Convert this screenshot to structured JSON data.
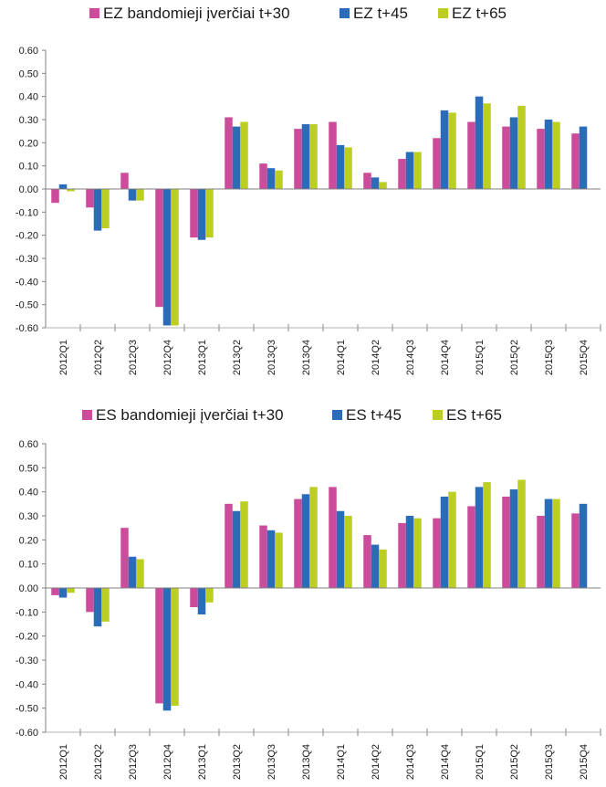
{
  "colors": {
    "s1": "#cc4b9a",
    "s2": "#2a6cb8",
    "s3": "#bcce24",
    "axis": "#808080",
    "grid": "#b0b0b0"
  },
  "chart_data": [
    {
      "type": "bar",
      "legend": [
        "EZ bandomieji įverčiai t+30",
        "EZ t+45",
        "EZ t+65"
      ],
      "categories": [
        "2012Q1",
        "2012Q2",
        "2012Q3",
        "2012Q4",
        "2013Q1",
        "2013Q2",
        "2013Q3",
        "2013Q4",
        "2014Q1",
        "2014Q2",
        "2014Q3",
        "2014Q4",
        "2015Q1",
        "2015Q2",
        "2015Q3",
        "2015Q4"
      ],
      "yticks": [
        "0.60",
        "0.50",
        "0.40",
        "0.30",
        "0.20",
        "0.10",
        "0.00",
        "-0.10",
        "-0.20",
        "-0.30",
        "-0.40",
        "-0.50",
        "-0.60"
      ],
      "ylim": [
        -0.6,
        0.6
      ],
      "series": [
        {
          "name": "EZ bandomieji įverčiai t+30",
          "values": [
            -0.06,
            -0.08,
            0.07,
            -0.51,
            -0.21,
            0.31,
            0.11,
            0.26,
            0.29,
            0.07,
            0.13,
            0.22,
            0.29,
            0.27,
            0.26,
            0.24
          ]
        },
        {
          "name": "EZ t+45",
          "values": [
            0.02,
            -0.18,
            -0.05,
            -0.59,
            -0.22,
            0.27,
            0.09,
            0.28,
            0.19,
            0.05,
            0.16,
            0.34,
            0.4,
            0.31,
            0.3,
            0.27
          ]
        },
        {
          "name": "EZ t+65",
          "values": [
            -0.01,
            -0.17,
            -0.05,
            -0.59,
            -0.21,
            0.29,
            0.08,
            0.28,
            0.18,
            0.03,
            0.16,
            0.33,
            0.37,
            0.36,
            0.29,
            null
          ]
        }
      ]
    },
    {
      "type": "bar",
      "legend": [
        "ES bandomieji įverčiai t+30",
        "ES t+45",
        "ES t+65"
      ],
      "categories": [
        "2012Q1",
        "2012Q2",
        "2012Q3",
        "2012Q4",
        "2013Q1",
        "2013Q2",
        "2013Q3",
        "2013Q4",
        "2014Q1",
        "2014Q2",
        "2014Q3",
        "2014Q4",
        "2015Q1",
        "2015Q2",
        "2015Q3",
        "2015Q4"
      ],
      "yticks": [
        "0.60",
        "0.50",
        "0.40",
        "0.30",
        "0.20",
        "0.10",
        "0.00",
        "-0.10",
        "-0.20",
        "-0.30",
        "-0.40",
        "-0.50",
        "-0.60"
      ],
      "ylim": [
        -0.6,
        0.6
      ],
      "series": [
        {
          "name": "ES bandomieji įverčiai t+30",
          "values": [
            -0.03,
            -0.1,
            0.25,
            -0.48,
            -0.08,
            0.35,
            0.26,
            0.37,
            0.42,
            0.22,
            0.27,
            0.29,
            0.34,
            0.38,
            0.3,
            0.31
          ]
        },
        {
          "name": "ES t+45",
          "values": [
            -0.04,
            -0.16,
            0.13,
            -0.51,
            -0.11,
            0.32,
            0.24,
            0.39,
            0.32,
            0.18,
            0.3,
            0.38,
            0.42,
            0.41,
            0.37,
            0.35
          ]
        },
        {
          "name": "ES t+65",
          "values": [
            -0.02,
            -0.14,
            0.12,
            -0.49,
            -0.06,
            0.36,
            0.23,
            0.42,
            0.3,
            0.16,
            0.29,
            0.4,
            0.44,
            0.45,
            0.37,
            null
          ]
        }
      ]
    }
  ]
}
